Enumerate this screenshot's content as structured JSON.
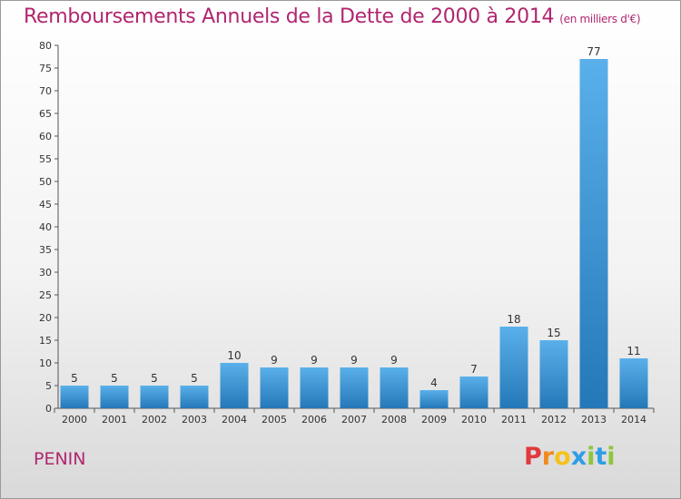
{
  "header": {
    "title": "Remboursements Annuels de la Dette de 2000 à 2014",
    "unit": "(en milliers d'€)"
  },
  "footer": {
    "commune": "PENIN",
    "brand_letters": [
      "P",
      "r",
      "o",
      "x",
      "i",
      "t",
      "i"
    ],
    "brand_colors": [
      "#e0393e",
      "#f08a1c",
      "#f4c21a",
      "#2e9ee6",
      "#8dc63f",
      "#2e9ee6",
      "#8dc63f"
    ]
  },
  "chart_data": {
    "type": "bar",
    "title": "Remboursements Annuels de la Dette de 2000 à 2014",
    "subtitle": "(en milliers d'€)",
    "categories": [
      "2000",
      "2001",
      "2002",
      "2003",
      "2004",
      "2005",
      "2006",
      "2007",
      "2008",
      "2009",
      "2010",
      "2011",
      "2012",
      "2013",
      "2014"
    ],
    "values": [
      5,
      5,
      5,
      5,
      10,
      9,
      9,
      9,
      9,
      4,
      7,
      18,
      15,
      77,
      11
    ],
    "ylim": [
      0,
      80
    ],
    "yticks": [
      0,
      5,
      10,
      15,
      20,
      25,
      30,
      35,
      40,
      45,
      50,
      55,
      60,
      65,
      70,
      75,
      80
    ],
    "grid": false,
    "colors": {
      "bar_top": "#5ab0ea",
      "bar_bottom": "#2578b8"
    }
  }
}
